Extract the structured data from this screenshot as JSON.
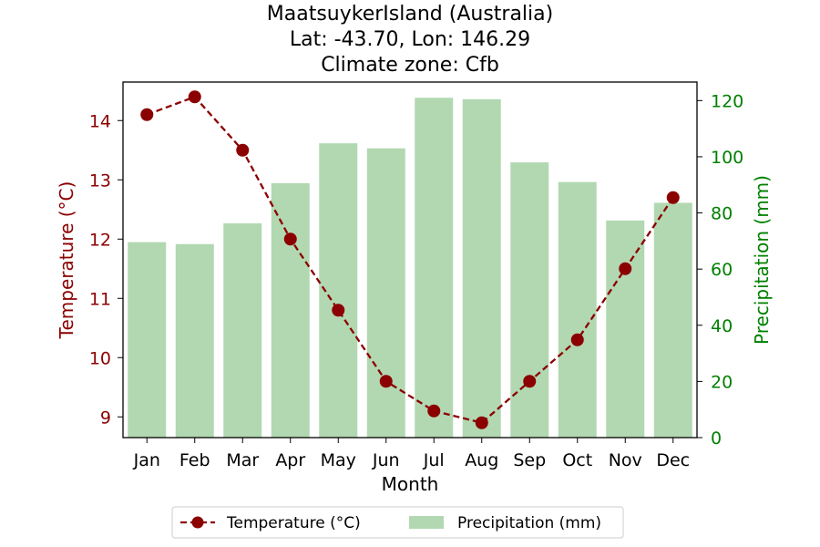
{
  "chart_data": {
    "type": "bar+line",
    "title_lines": [
      "MaatsuykerIsland (Australia)",
      "Lat: -43.70, Lon: 146.29",
      "Climate zone: Cfb"
    ],
    "xlabel": "Month",
    "ylabel_left": "Temperature (°C)",
    "ylabel_right": "Precipitation (mm)",
    "categories": [
      "Jan",
      "Feb",
      "Mar",
      "Apr",
      "May",
      "Jun",
      "Jul",
      "Aug",
      "Sep",
      "Oct",
      "Nov",
      "Dec"
    ],
    "y_left_lim": [
      8.65,
      14.65
    ],
    "y_left_ticks": [
      9,
      10,
      11,
      12,
      13,
      14
    ],
    "y_right_lim": [
      0,
      126.6
    ],
    "y_right_ticks": [
      0,
      20,
      40,
      60,
      80,
      100,
      120
    ],
    "series": [
      {
        "name": "Temperature (°C)",
        "kind": "line",
        "axis": "left",
        "values": [
          14.1,
          14.4,
          13.5,
          12.0,
          10.8,
          9.6,
          9.1,
          8.9,
          9.6,
          10.3,
          11.5,
          12.7
        ]
      },
      {
        "name": "Precipitation (mm)",
        "kind": "bar",
        "axis": "right",
        "values": [
          69.6,
          68.9,
          76.3,
          90.6,
          104.8,
          103.0,
          121.0,
          120.5,
          98.0,
          91.0,
          77.3,
          83.6
        ]
      }
    ],
    "legend_placement": "bottom-center",
    "grid": false,
    "colors": {
      "temperature": "#8b0000",
      "precipitation": "#b2d8b2",
      "left_axis_text": "#8b0000",
      "right_axis_text": "#008000"
    }
  }
}
